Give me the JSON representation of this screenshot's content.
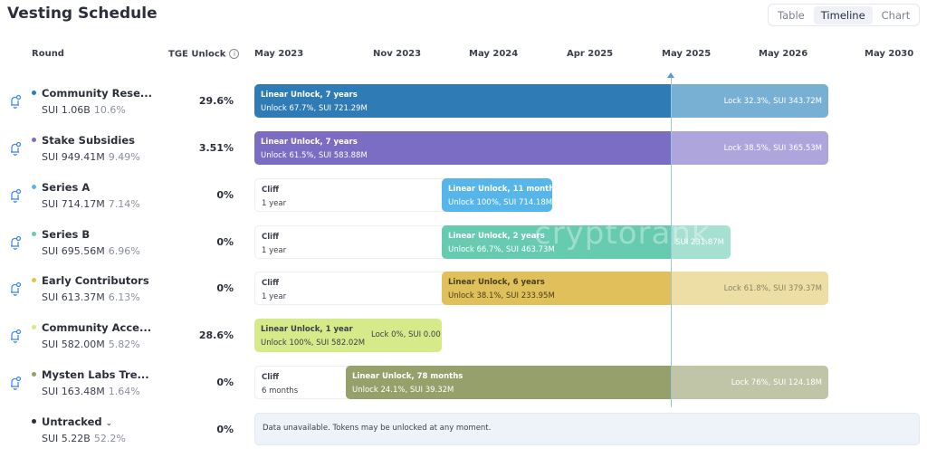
{
  "title": "Vesting Schedule",
  "view_switch": {
    "options": [
      "Table",
      "Timeline",
      "Chart"
    ],
    "selected": "Timeline"
  },
  "headers": {
    "round": "Round",
    "tge": "TGE Unlock"
  },
  "timeline_labels": [
    "May 2023",
    "Nov 2023",
    "May 2024",
    "Apr 2025",
    "May 2025",
    "May 2026",
    "May 2030"
  ],
  "current_marker": "May 2025",
  "watermark": "cryptorank",
  "rounds": [
    {
      "name": "Community Rese...",
      "amount": "SUI 1.06B",
      "share": "10.6%",
      "tge": "29.6%",
      "color": "#2e7bb6",
      "lock_color": "#78b0d4",
      "cliff": null,
      "linear": {
        "title": "Linear Unlock, 7 years",
        "detail": "Unlock 67.7%, SUI 721.29M"
      },
      "lock": "Lock 32.3%, SUI 343.72M"
    },
    {
      "name": "Stake Subsidies",
      "amount": "SUI 949.41M",
      "share": "9.49%",
      "tge": "3.51%",
      "color": "#7b6cc4",
      "lock_color": "#afa5dd",
      "cliff": null,
      "linear": {
        "title": "Linear Unlock, 7 years",
        "detail": "Unlock 61.5%, SUI 583.88M"
      },
      "lock": "Lock 38.5%, SUI 365.53M"
    },
    {
      "name": "Series A",
      "amount": "SUI 714.17M",
      "share": "7.14%",
      "tge": "0%",
      "color": "#56b6ea",
      "lock_color": null,
      "cliff": {
        "title": "Cliff",
        "detail": "1 year"
      },
      "linear": {
        "title": "Linear Unlock, 11 months",
        "detail": "Unlock 100%, SUI 714.18M"
      },
      "lock": null
    },
    {
      "name": "Series B",
      "amount": "SUI 695.56M",
      "share": "6.96%",
      "tge": "0%",
      "color": "#67cbb0",
      "lock_color": "#a6e0d0",
      "cliff": {
        "title": "Cliff",
        "detail": "1 year"
      },
      "linear": {
        "title": "Linear Unlock, 2 years",
        "detail": "Unlock 66.7%, SUI 463.73M"
      },
      "lock": "Lock 33.3%, SUI 231.87M"
    },
    {
      "name": "Early Contributors",
      "amount": "SUI 613.37M",
      "share": "6.13%",
      "tge": "0%",
      "color": "#dfc05a",
      "lock_color": "#ecdea4",
      "cliff": {
        "title": "Cliff",
        "detail": "1 year"
      },
      "linear": {
        "title": "Linear Unlock, 6 years",
        "detail": "Unlock 38.1%, SUI 233.95M"
      },
      "lock": "Lock 61.8%, SUI 379.37M"
    },
    {
      "name": "Community Acce...",
      "amount": "SUI 582.00M",
      "share": "5.82%",
      "tge": "28.6%",
      "color": "#d7ea8a",
      "lock_color": null,
      "cliff": null,
      "linear": {
        "title": "Linear Unlock, 1 year",
        "detail": "Unlock 100%, SUI 582.02M"
      },
      "lock": "Lock 0%, SUI 0.00"
    },
    {
      "name": "Mysten Labs Tre...",
      "amount": "SUI 163.48M",
      "share": "1.64%",
      "tge": "0%",
      "color": "#96a06a",
      "lock_color": "#bfc5a6",
      "cliff": {
        "title": "Cliff",
        "detail": "6 months"
      },
      "linear": {
        "title": "Linear Unlock, 78 months",
        "detail": "Unlock 24.1%, SUI 39.32M"
      },
      "lock": "Lock 76%, SUI 124.18M"
    }
  ],
  "untracked": {
    "name": "Untracked",
    "amount": "SUI 5.22B",
    "share": "52.2%",
    "tge": "0%",
    "color": "#2b2f3a",
    "message": "Data unavailable. Tokens may be unlocked at any moment."
  }
}
